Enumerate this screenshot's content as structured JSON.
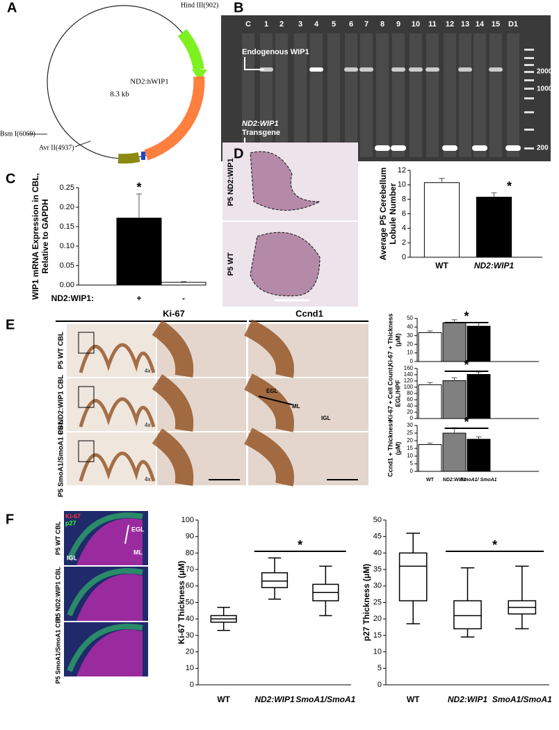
{
  "panel_labels": [
    "A",
    "B",
    "C",
    "D",
    "E",
    "F"
  ],
  "plasmid": {
    "name": "ND2:hWIP1",
    "size": "8.3 kb",
    "sites": [
      "Hind III(902)",
      "Bsm I(6069)",
      "Avr II(4937)"
    ]
  },
  "gel": {
    "lanes": [
      "C",
      "1",
      "2",
      "3",
      "4",
      "5",
      "6",
      "7",
      "8",
      "9",
      "10",
      "11",
      "12",
      "13",
      "14",
      "15",
      "D1"
    ],
    "endogenous_label": [
      "Endogenous WIP1"
    ],
    "transgene_label": [
      "ND2:WIP1",
      "Transgene"
    ],
    "ladder": [
      "2000",
      "1000",
      "200"
    ]
  },
  "histology_d": {
    "rows": [
      "P5 ND2:WIP1",
      "P5 WT"
    ]
  },
  "histology_e": {
    "columns": [
      "Ki-67",
      "Ccnd1"
    ],
    "rows": [
      "P5 WT CBL",
      "P5 ND2:WIP1 CBL",
      "P5 SmoA1/SmoA1 CBL"
    ],
    "magnification": [
      "4x",
      "4x",
      "4x"
    ],
    "layers": [
      "EGL",
      "ML",
      "IGL"
    ]
  },
  "fluorescence_f": {
    "stains": [
      "Ki-67",
      "p27"
    ],
    "layers": [
      "EGL",
      "ML",
      "IGL"
    ],
    "rows": [
      "P5 WT CBL",
      "P5 ND2:WIP1 CBL",
      "P5 SmoA1/SmoA1 CBL"
    ]
  },
  "chart_data": [
    {
      "type": "bar",
      "ylabel": [
        "WIP1 mRNA Expression in CBL,",
        "Relative to GAPDH"
      ],
      "xlabel": "ND2:WIP1:",
      "categories": [
        "+",
        "-"
      ],
      "values": [
        0.172,
        0.007
      ],
      "errors": [
        0.062,
        0.002
      ],
      "colors": [
        "#000000",
        "#ffffff"
      ],
      "ylim": [
        0,
        0.25
      ],
      "yticks": [
        {
          "value": 0,
          "label": "0.00"
        },
        {
          "value": 0.05,
          "label": "0.05"
        },
        {
          "value": 0.1,
          "label": "0.10"
        },
        {
          "value": 0.15,
          "label": "0.15"
        },
        {
          "value": 0.2,
          "label": "0.20"
        },
        {
          "value": 0.25,
          "label": "0.25"
        }
      ],
      "annotation": "*"
    },
    {
      "type": "bar",
      "ylabel": [
        "Average P5 Cerebellum",
        "Lobule Number"
      ],
      "categories": [
        "WT",
        "ND2:WIP1"
      ],
      "values": [
        10.3,
        8.3
      ],
      "errors": [
        0.6,
        0.6
      ],
      "colors": [
        "#ffffff",
        "#000000"
      ],
      "ylim": [
        0,
        12
      ],
      "yticks": [
        0,
        2,
        4,
        6,
        8,
        10,
        12
      ],
      "annotation": "*"
    },
    {
      "type": "bar",
      "ylabel": [
        "Ki-67 + Thickness",
        "(μM)"
      ],
      "values": [
        33.5,
        45,
        41
      ],
      "errors": [
        2,
        3.5,
        4
      ],
      "colors": [
        "#ffffff",
        "#808080",
        "#000000"
      ],
      "ylim": [
        0,
        50
      ],
      "yticks": [
        0,
        10,
        20,
        30,
        40,
        50
      ],
      "annotation": "*"
    },
    {
      "type": "bar",
      "ylabel": [
        "Ki-67 + Cell Count,",
        "EGL/HPF"
      ],
      "values": [
        108,
        121,
        141
      ],
      "errors": [
        7,
        9,
        8
      ],
      "colors": [
        "#ffffff",
        "#808080",
        "#000000"
      ],
      "ylim": [
        0,
        160
      ],
      "yticks": [
        0,
        20,
        40,
        60,
        80,
        100,
        120,
        140,
        160
      ],
      "annotation": "*"
    },
    {
      "type": "bar",
      "ylabel": [
        "Ccnd1 + Thickness",
        "(μM)"
      ],
      "categories": [
        "WT",
        "ND2:WIP1",
        "SmoA1/ SmoA1"
      ],
      "values": [
        17.5,
        25,
        21
      ],
      "errors": [
        1,
        3.5,
        1.5
      ],
      "colors": [
        "#ffffff",
        "#808080",
        "#000000"
      ],
      "ylim": [
        0,
        30
      ],
      "yticks": [
        0,
        5,
        10,
        15,
        20,
        25,
        30
      ],
      "annotation": "*"
    },
    {
      "type": "box",
      "ylabel": [
        "Ki-67 Thickness (μM)"
      ],
      "categories": [
        "WT",
        "ND2:WIP1",
        "SmoA1/SmoA1"
      ],
      "boxes": [
        {
          "min": 33,
          "q1": 38,
          "median": 40,
          "q3": 42,
          "max": 47
        },
        {
          "min": 52,
          "q1": 59,
          "median": 63,
          "q3": 68,
          "max": 77
        },
        {
          "min": 42,
          "q1": 51,
          "median": 56,
          "q3": 61,
          "max": 72
        }
      ],
      "ylim": [
        0,
        100
      ],
      "yticks": [
        0,
        10,
        20,
        30,
        40,
        50,
        60,
        70,
        80,
        90,
        100
      ],
      "annotation": "*"
    },
    {
      "type": "box",
      "ylabel": [
        "p27 Thickness (μM)"
      ],
      "categories": [
        "WT",
        "ND2:WIP1",
        "SmoA1/SmoA1"
      ],
      "boxes": [
        {
          "min": 18.5,
          "q1": 25.5,
          "median": 36,
          "q3": 40,
          "max": 46
        },
        {
          "min": 14.5,
          "q1": 17,
          "median": 21,
          "q3": 25.5,
          "max": 35.5
        },
        {
          "min": 17,
          "q1": 21.5,
          "median": 23.5,
          "q3": 25.5,
          "max": 36
        }
      ],
      "ylim": [
        0,
        50
      ],
      "yticks": [
        0,
        5,
        10,
        15,
        20,
        25,
        30,
        35,
        40,
        45,
        50
      ],
      "annotation": "*"
    }
  ]
}
